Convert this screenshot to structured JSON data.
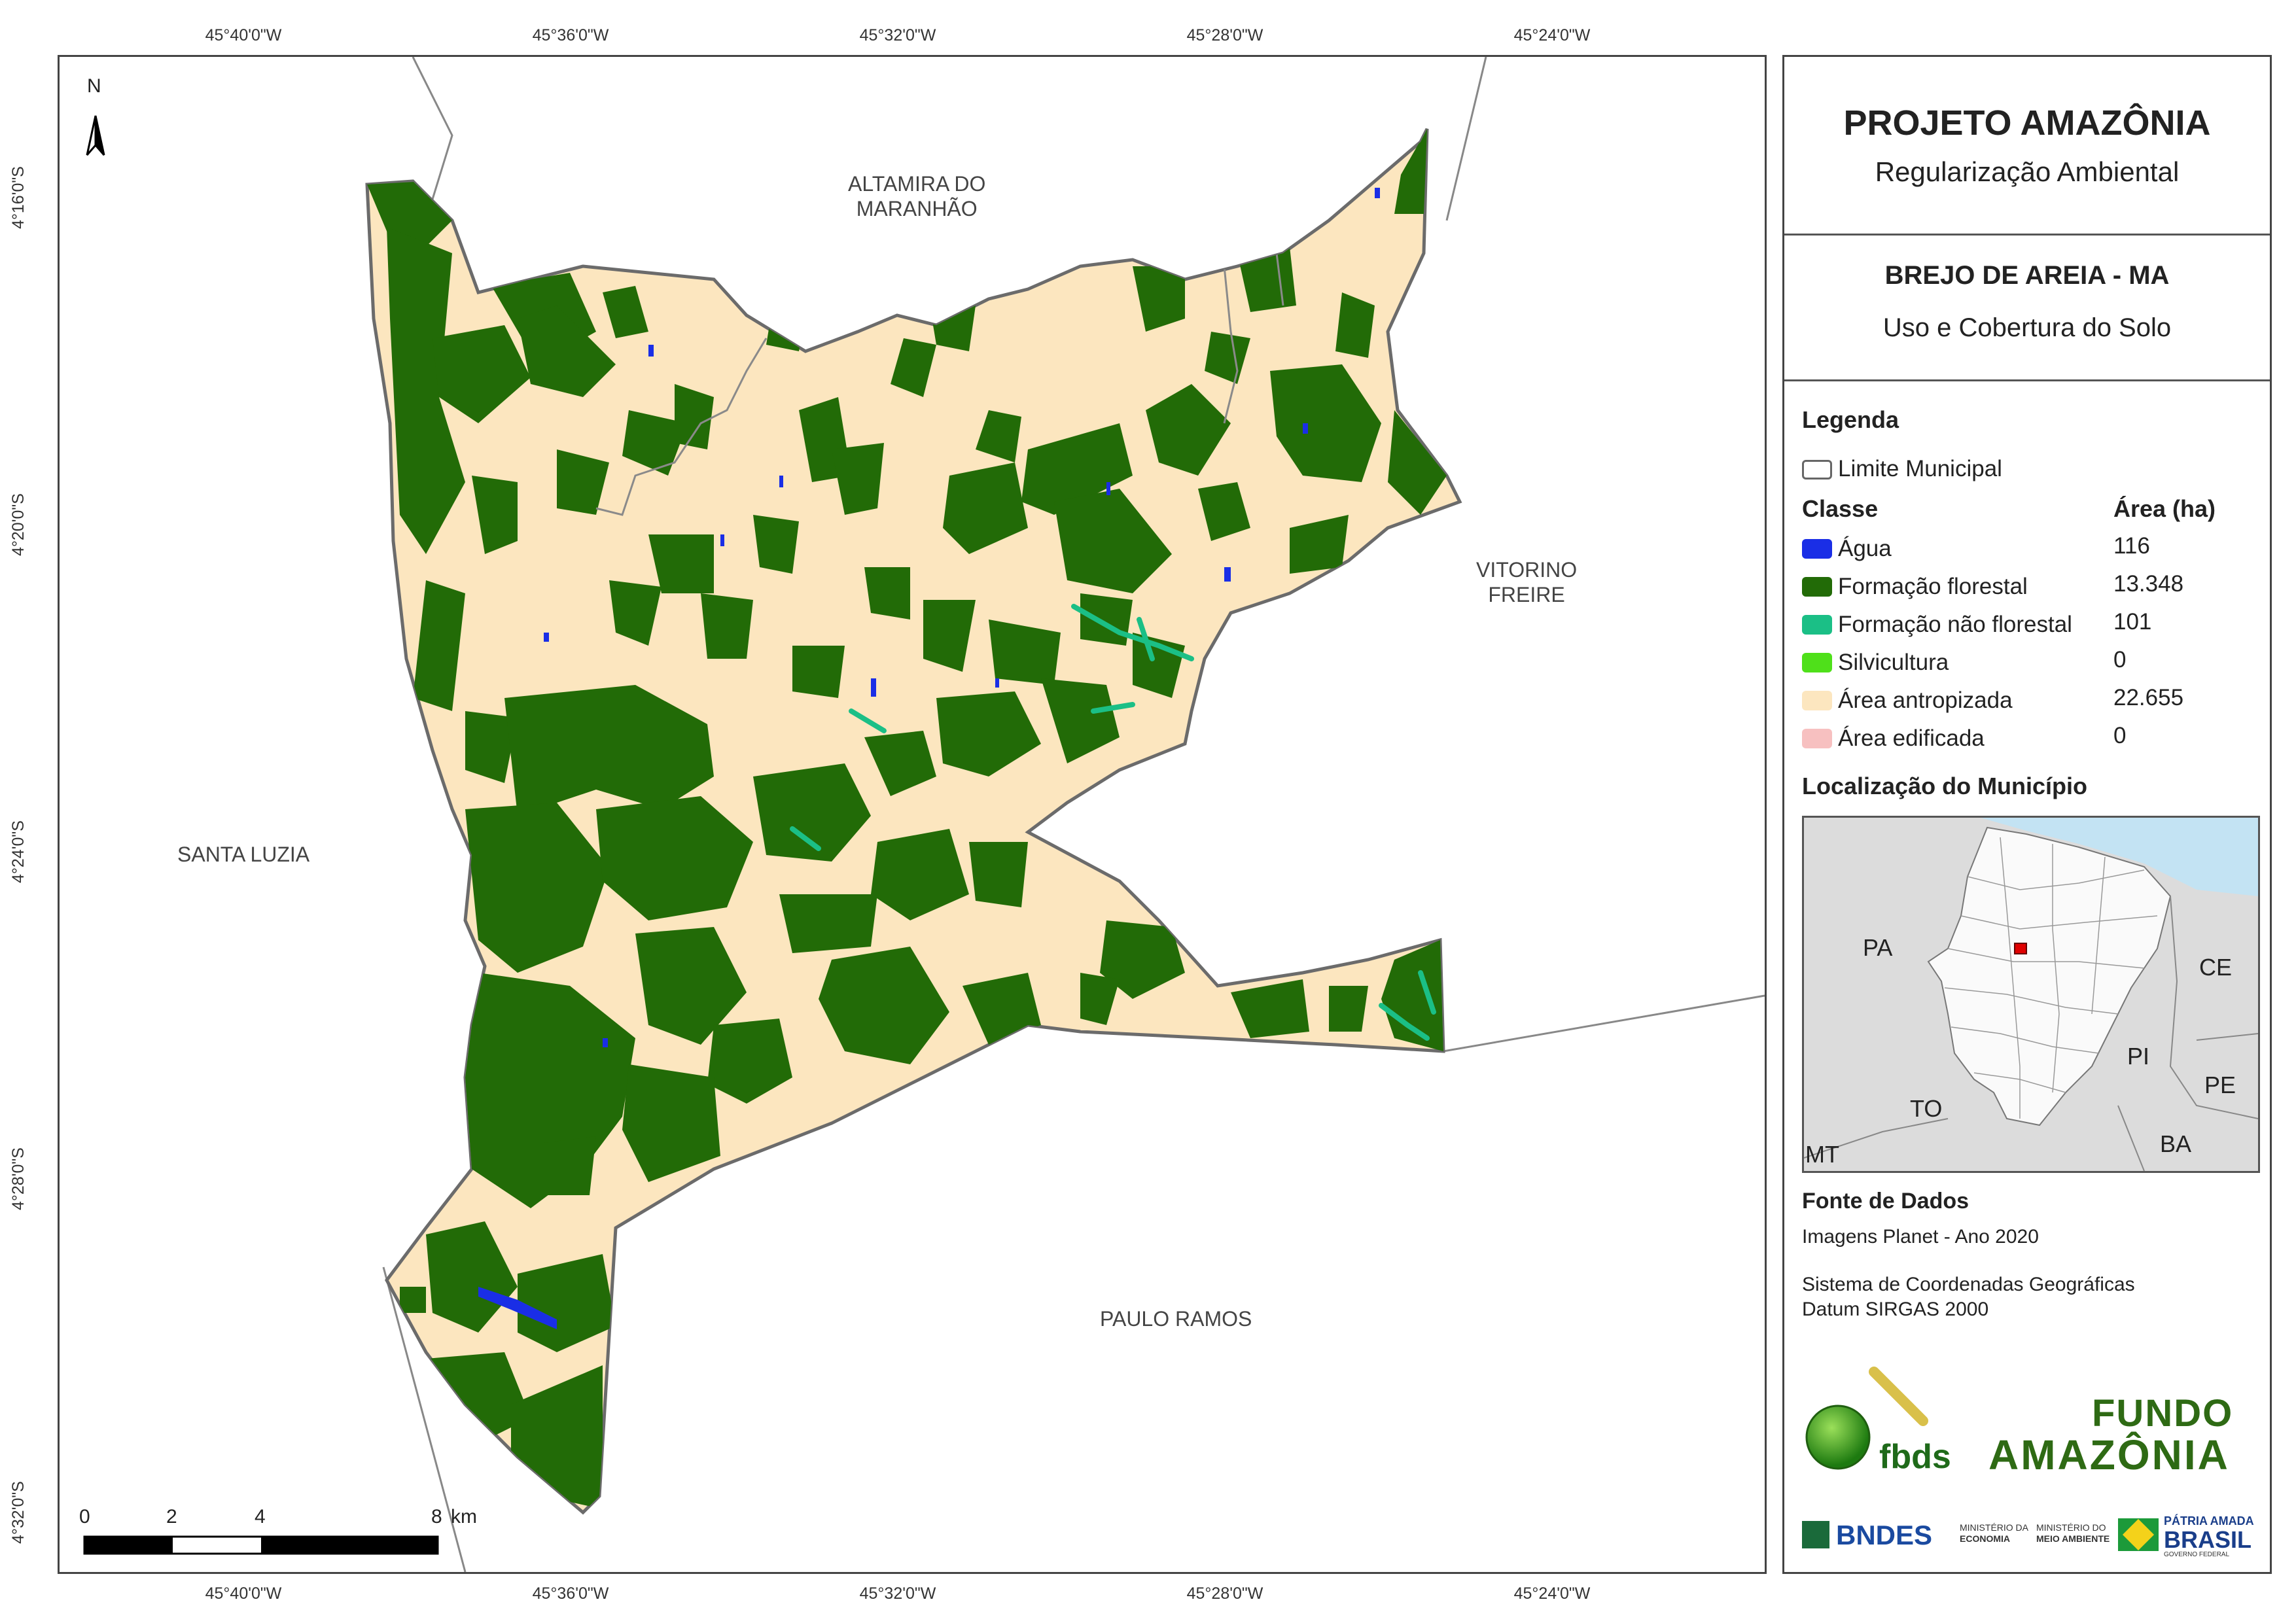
{
  "coords": {
    "lon": [
      "45°40'0\"W",
      "45°36'0\"W",
      "45°32'0\"W",
      "45°28'0\"W",
      "45°24'0\"W"
    ],
    "lat": [
      "4°16'0\"S",
      "4°20'0\"S",
      "4°24'0\"S",
      "4°28'0\"S",
      "4°32'0\"S"
    ]
  },
  "map": {
    "north": "N",
    "neighbors": {
      "altamira": "ALTAMIRA DO\nMARANHÃO",
      "vitorino": "VITORINO\nFREIRE",
      "santa_luzia": "SANTA LUZIA",
      "paulo_ramos": "PAULO RAMOS"
    },
    "scale": {
      "labels": [
        "0",
        "2",
        "4",
        "8"
      ],
      "unit": "km"
    },
    "colors": {
      "forest": "#226b07",
      "anthro": "#fce6bf",
      "water": "#1a2ee6",
      "nonforest": "#1bbf86",
      "border": "#6b6b6b"
    }
  },
  "panel": {
    "title": "PROJETO AMAZÔNIA",
    "subtitle": "Regularização Ambiental",
    "municipality": "BREJO DE AREIA - MA",
    "theme": "Uso e Cobertura do Solo",
    "legend_title": "Legenda",
    "limit_label": "Limite Municipal",
    "class_header": "Classe",
    "area_header": "Área (ha)",
    "classes": [
      {
        "label": "Água",
        "area": "116",
        "color": "#1a2ee6"
      },
      {
        "label": "Formação florestal",
        "area": "13.348",
        "color": "#226b07"
      },
      {
        "label": "Formação não florestal",
        "area": "101",
        "color": "#1bbf86"
      },
      {
        "label": "Silvicultura",
        "area": "0",
        "color": "#4fe01a"
      },
      {
        "label": "Área antropizada",
        "area": "22.655",
        "color": "#fce6bf"
      },
      {
        "label": "Área edificada",
        "area": "0",
        "color": "#f7c0c0"
      }
    ],
    "location_title": "Localização do Município",
    "inset_labels": [
      "PA",
      "CE",
      "PI",
      "TO",
      "PE",
      "BA",
      "MT"
    ],
    "sources_title": "Fonte de Dados",
    "source1": "Imagens Planet - Ano 2020",
    "source2": "Sistema de Coordenadas Geográficas",
    "source3": "Datum SIRGAS 2000",
    "logos": {
      "fbds": "fbds",
      "fundo1": "FUNDO",
      "fundo2": "AMAZÔNIA",
      "bndes": "BNDES",
      "min1a": "MINISTÉRIO DA",
      "min1b": "ECONOMIA",
      "min2a": "MINISTÉRIO DO",
      "min2b": "MEIO AMBIENTE",
      "patria1": "PÁTRIA AMADA",
      "patria2": "BRASIL",
      "patria3": "GOVERNO FEDERAL"
    }
  }
}
